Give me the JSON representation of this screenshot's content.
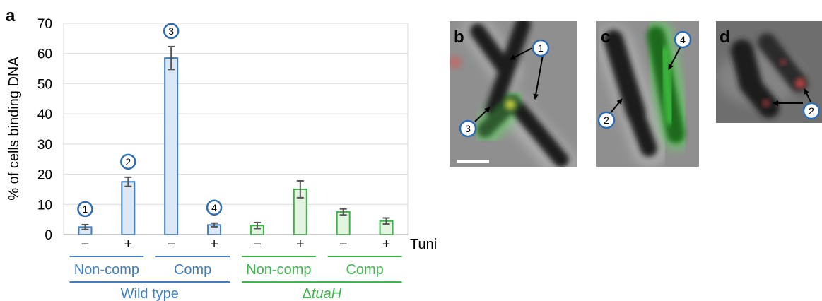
{
  "panel_a_label": "a",
  "chart_data": {
    "type": "bar",
    "ylabel": "% of cells binding DNA",
    "ylim": [
      0,
      70
    ],
    "yticks": [
      "0",
      "10",
      "20",
      "30",
      "40",
      "50",
      "60",
      "70"
    ],
    "grid": true,
    "tuni_label": "Tuni",
    "tuni_ticks": [
      "−",
      "+",
      "−",
      "+",
      "−",
      "+",
      "−",
      "+"
    ],
    "categories": [
      "WT Non-comp −",
      "WT Non-comp +",
      "WT Comp −",
      "WT Comp +",
      "ΔtuaH Non-comp −",
      "ΔtuaH Non-comp +",
      "ΔtuaH Comp −",
      "ΔtuaH Comp +"
    ],
    "values": [
      2.5,
      17.5,
      58.5,
      3.2,
      3.0,
      15.0,
      7.5,
      4.5
    ],
    "errors": [
      0.8,
      1.5,
      3.8,
      0.6,
      1.0,
      2.8,
      1.0,
      1.0
    ],
    "bar_groups": [
      "wt",
      "wt",
      "wt",
      "wt",
      "mut",
      "mut",
      "mut",
      "mut"
    ],
    "annotations": [
      {
        "bar": 0,
        "text": "1"
      },
      {
        "bar": 1,
        "text": "2"
      },
      {
        "bar": 2,
        "text": "3"
      },
      {
        "bar": 3,
        "text": "4"
      }
    ],
    "group_labels": [
      {
        "text": "Non-comp",
        "group": "wt"
      },
      {
        "text": "Comp",
        "group": "wt"
      },
      {
        "text": "Non-comp",
        "group": "mut"
      },
      {
        "text": "Comp",
        "group": "mut"
      }
    ],
    "strain_labels": {
      "wt": "Wild type",
      "mut_prefix": "Δ",
      "mut_italic": "tuaH"
    },
    "colors": {
      "wt_edge": "#3f7fbf",
      "wt_fill": "#dce8f5",
      "mut_edge": "#3cb54a",
      "mut_fill": "#e3f5df",
      "wt_text": "#3f7fbf",
      "mut_text": "#3cb54a",
      "grid": "#d9d9d9",
      "error": "#555555"
    }
  },
  "micrographs": {
    "b": {
      "letter": "b",
      "callouts": [
        "1",
        "3"
      ]
    },
    "c": {
      "letter": "c",
      "callouts": [
        "4",
        "2"
      ]
    },
    "d": {
      "letter": "d",
      "callouts": [
        "2"
      ]
    }
  }
}
